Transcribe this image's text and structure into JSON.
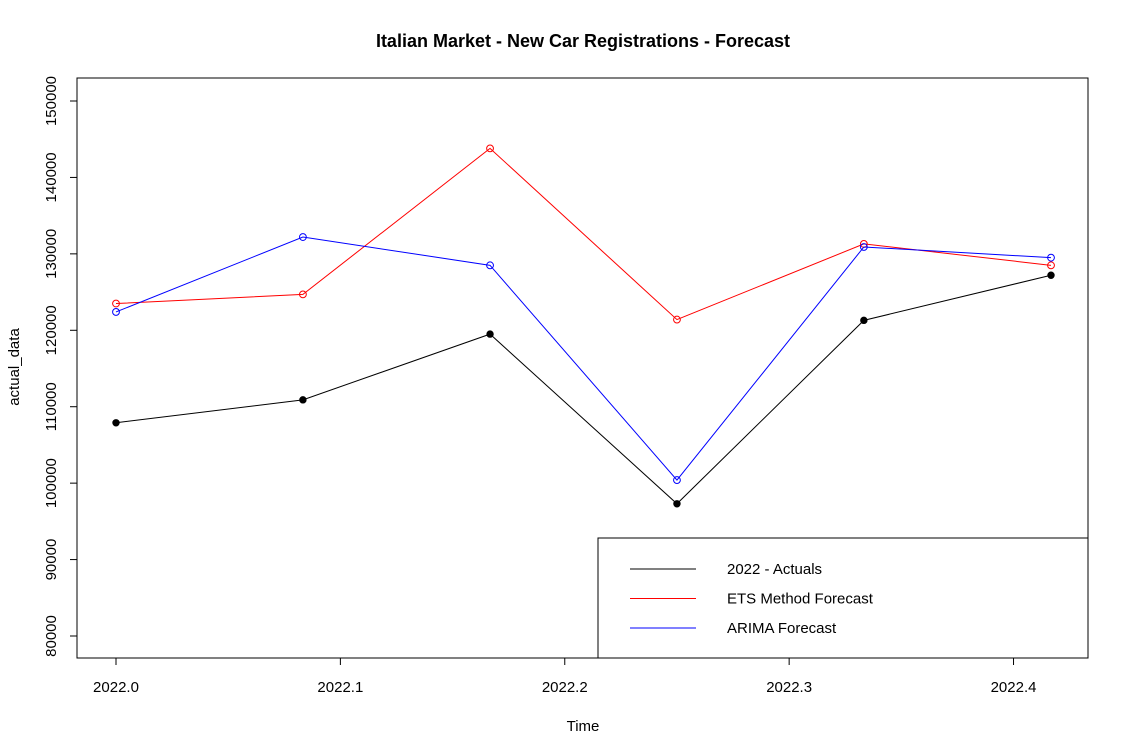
{
  "chart_data": {
    "type": "line",
    "title": "Italian Market - New Car Registrations - Forecast",
    "xlabel": "Time",
    "ylabel": "actual_data",
    "xlim": [
      2022.0,
      2022.4167
    ],
    "ylim": [
      80000,
      150000
    ],
    "x": [
      2022.0,
      2022.0833,
      2022.1667,
      2022.25,
      2022.3333,
      2022.4167
    ],
    "x_ticks": [
      2022.0,
      2022.1,
      2022.2,
      2022.3,
      2022.4
    ],
    "x_tick_labels": [
      "2022.0",
      "2022.1",
      "2022.2",
      "2022.3",
      "2022.4"
    ],
    "y_ticks": [
      80000,
      90000,
      100000,
      110000,
      120000,
      130000,
      140000,
      150000
    ],
    "y_tick_labels": [
      "80000",
      "90000",
      "100000",
      "110000",
      "120000",
      "130000",
      "140000",
      "150000"
    ],
    "grid": false,
    "legend_position": "bottom-right",
    "series": [
      {
        "name": "2022 - Actuals",
        "color": "#000000",
        "marker": "filled-circle",
        "values": [
          107900,
          110900,
          119500,
          97300,
          121300,
          127200
        ]
      },
      {
        "name": "ETS Method Forecast",
        "color": "#ff0000",
        "marker": "open-circle",
        "values": [
          123500,
          124700,
          143800,
          121400,
          131300,
          128500
        ]
      },
      {
        "name": "ARIMA Forecast",
        "color": "#0000ff",
        "marker": "open-circle",
        "values": [
          122400,
          132200,
          128500,
          100400,
          130900,
          129500
        ]
      }
    ]
  }
}
